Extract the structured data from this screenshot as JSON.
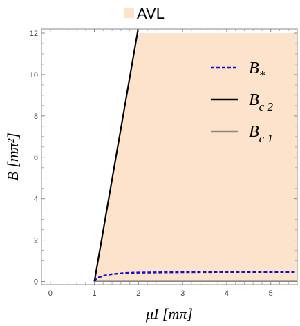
{
  "chart_data": {
    "type": "line",
    "xlabel": "μI [mπ]",
    "ylabel": "B [mπ²]",
    "xlim": [
      -0.2,
      5.6
    ],
    "ylim": [
      -0.15,
      12.2
    ],
    "x_ticks": [
      "0",
      "1",
      "2",
      "3",
      "4",
      "5"
    ],
    "y_ticks": [
      "0",
      "2",
      "4",
      "6",
      "8",
      "10",
      "12"
    ],
    "grid": false,
    "legend_position": "top-right",
    "top_legend": {
      "label": "AVL",
      "color": "#fde3cb"
    },
    "region": {
      "name": "AVL",
      "color": "#fde3cb",
      "points": [
        [
          1.0,
          0.0
        ],
        [
          2.0,
          12.0
        ],
        [
          5.6,
          12.0
        ],
        [
          5.6,
          0.0
        ]
      ]
    },
    "series": [
      {
        "name": "B*",
        "legend_main": "B",
        "legend_sub": "*",
        "color": "#1010cc",
        "style": "dashed",
        "points": [
          [
            1.0,
            0.0
          ],
          [
            1.05,
            0.12
          ],
          [
            1.1,
            0.2
          ],
          [
            1.2,
            0.28
          ],
          [
            1.4,
            0.36
          ],
          [
            1.7,
            0.41
          ],
          [
            2.0,
            0.43
          ],
          [
            3.0,
            0.45
          ],
          [
            4.0,
            0.46
          ],
          [
            5.6,
            0.46
          ]
        ]
      },
      {
        "name": "Bc2",
        "legend_main": "B",
        "legend_sub": "c 2",
        "color": "#000000",
        "style": "solid",
        "points": [
          [
            1.0,
            0.0
          ],
          [
            2.0,
            12.3
          ]
        ]
      },
      {
        "name": "Bc1",
        "legend_main": "B",
        "legend_sub": "c 1",
        "color": "#888888",
        "style": "solid",
        "points": [
          [
            1.0,
            0.0
          ],
          [
            5.6,
            0.0
          ]
        ]
      }
    ]
  }
}
